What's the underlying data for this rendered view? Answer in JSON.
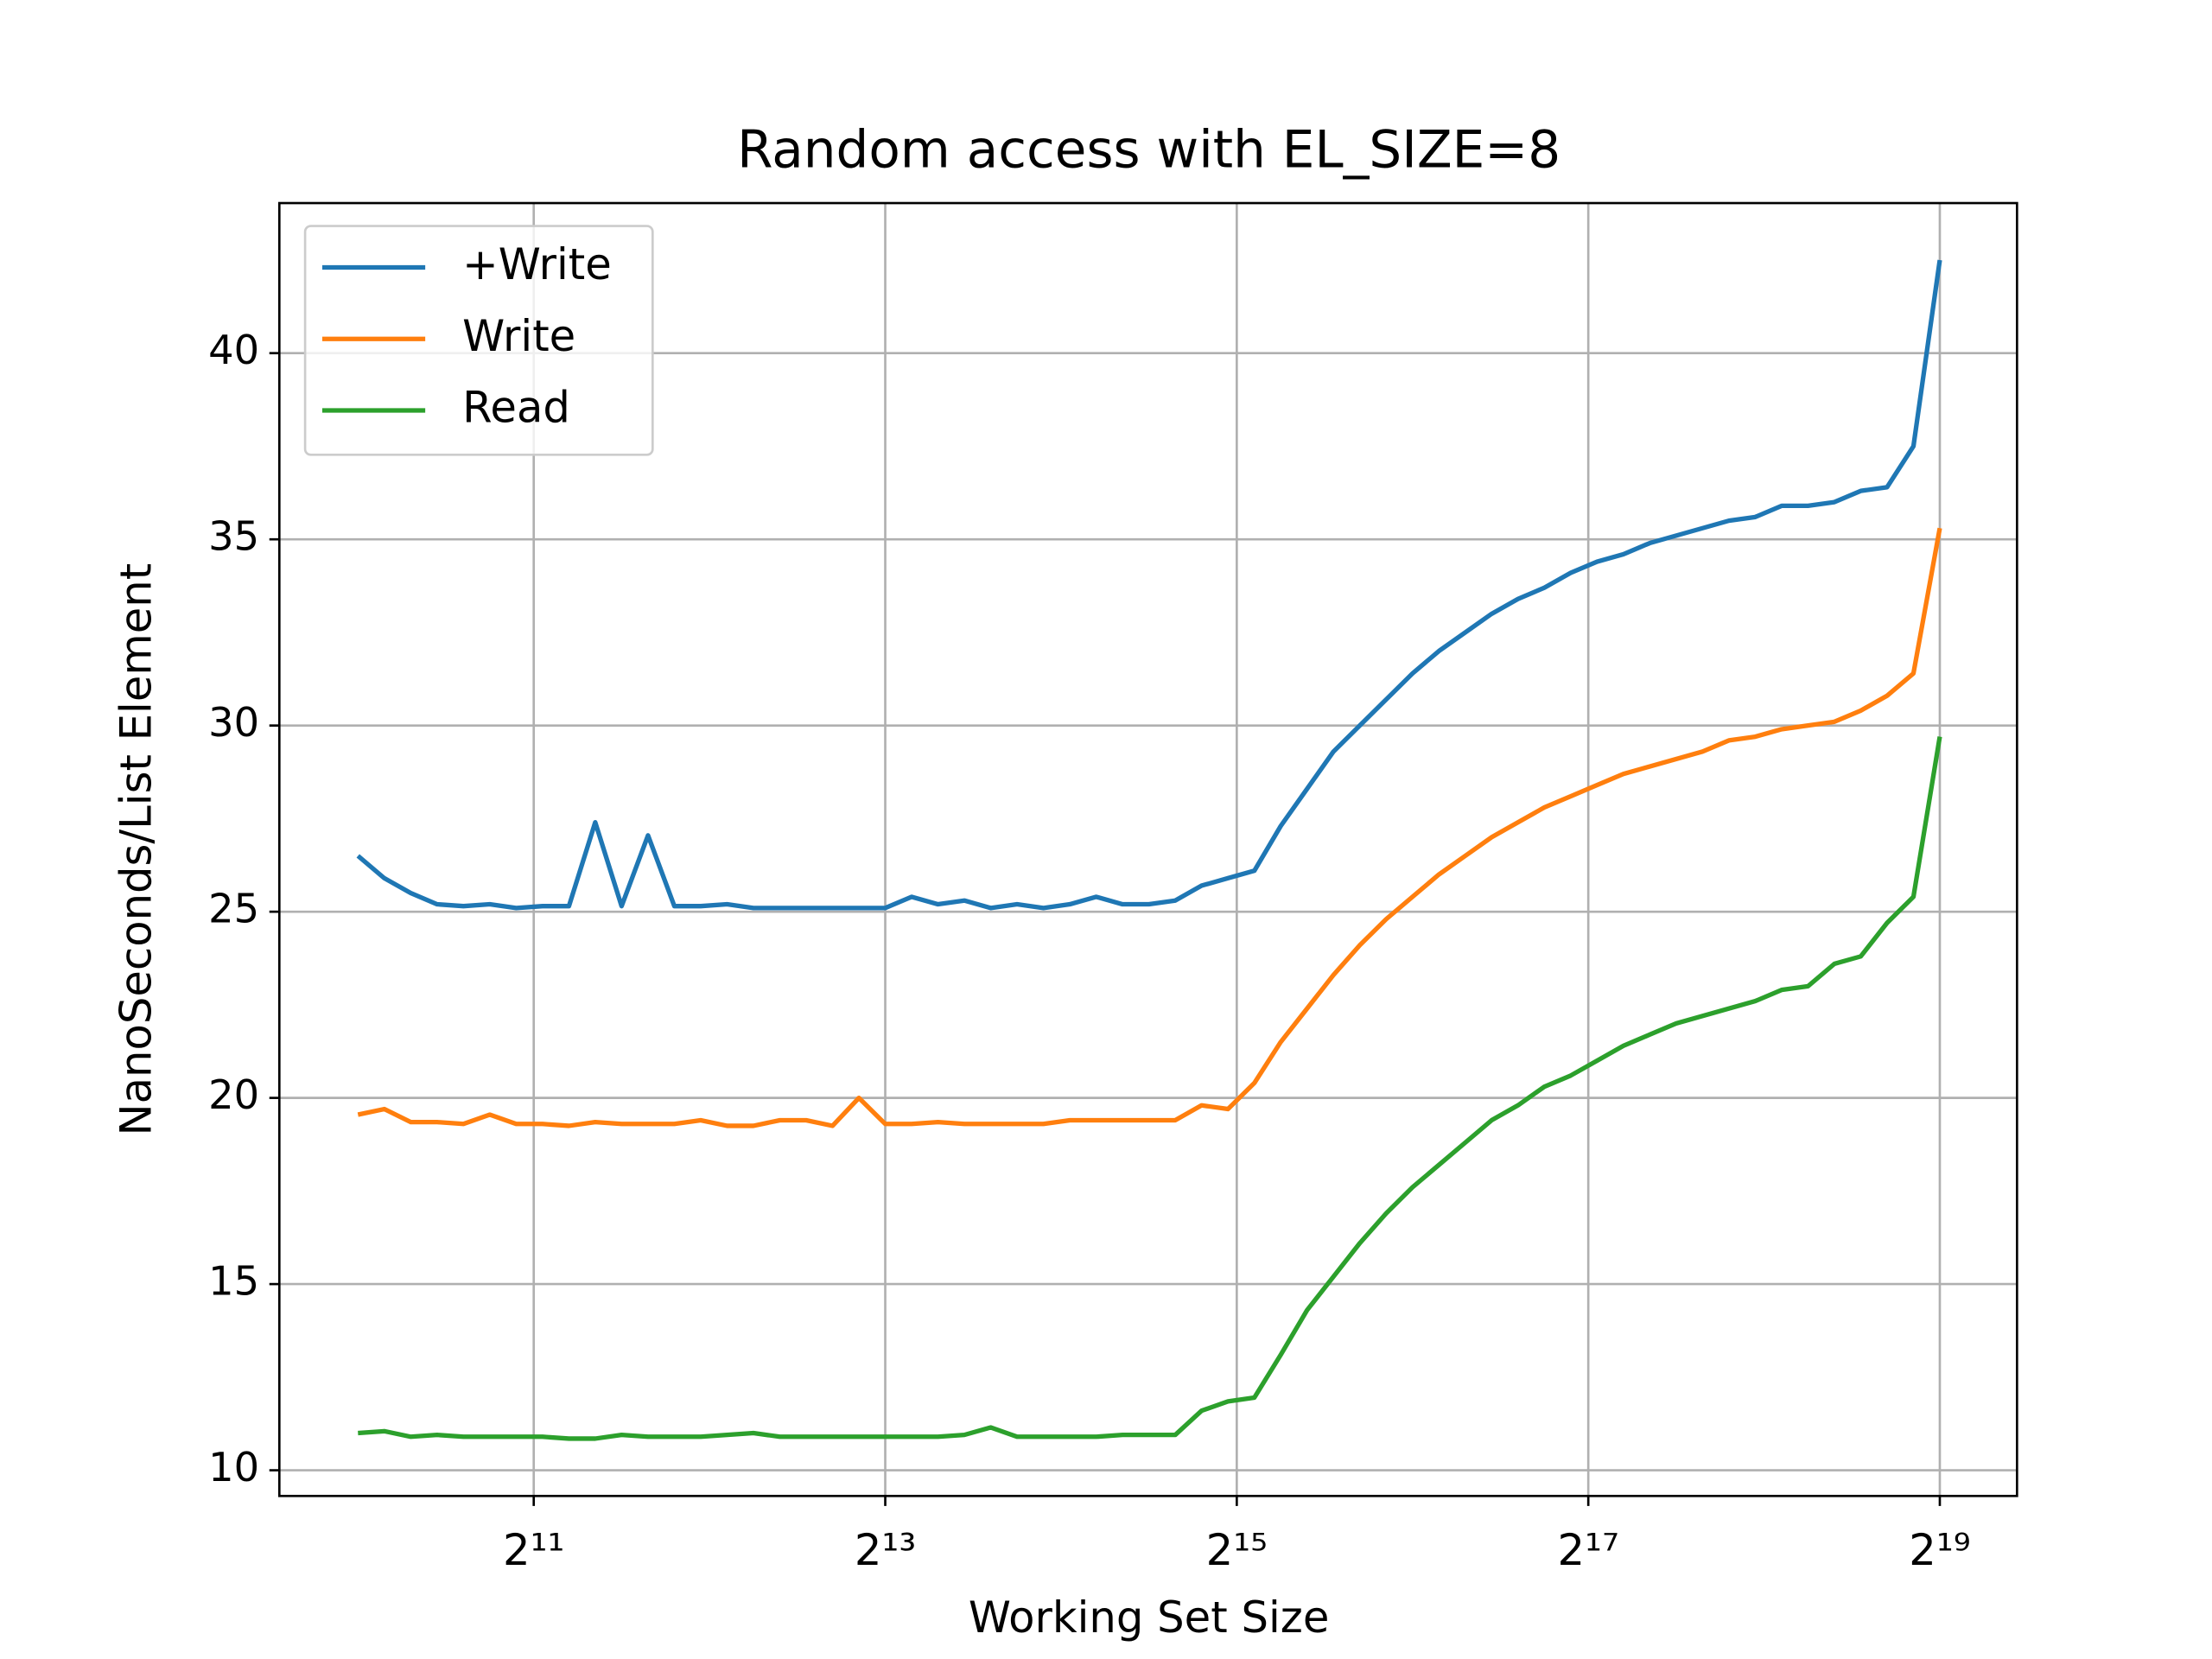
{
  "chart_data": {
    "type": "line",
    "title": "Random access with EL_SIZE=8",
    "xlabel": "Working Set Size",
    "ylabel": "NanoSeconds/List Element",
    "xscale": "log2",
    "x": [
      1024,
      1136,
      1261,
      1399,
      1552,
      1722,
      1911,
      2120,
      2353,
      2610,
      2896,
      3214,
      3566,
      3956,
      4390,
      4871,
      5405,
      5997,
      6654,
      7383,
      8192,
      9090,
      10086,
      11191,
      12417,
      13777,
      15287,
      16962,
      18820,
      20883,
      23170,
      25709,
      28526,
      31652,
      35120,
      38968,
      43238,
      47976,
      53232,
      59065,
      65536,
      72717,
      80684,
      89525,
      99334,
      110218,
      122295,
      135695,
      150562,
      167059,
      185364,
      205675,
      228211,
      253216,
      280961,
      311746,
      345904,
      383805,
      425859,
      472521,
      524288
    ],
    "series": [
      {
        "name": "+Write",
        "color": "#1f77b4",
        "values": [
          26.5,
          25.9,
          25.5,
          25.2,
          25.15,
          25.2,
          25.1,
          25.15,
          25.15,
          27.4,
          25.15,
          27.05,
          25.15,
          25.15,
          25.2,
          25.1,
          25.1,
          25.1,
          25.1,
          25.1,
          25.1,
          25.4,
          25.2,
          25.3,
          25.1,
          25.2,
          25.1,
          25.2,
          25.4,
          25.2,
          25.2,
          25.3,
          25.7,
          25.9,
          26.1,
          27.3,
          28.3,
          29.3,
          30.0,
          30.7,
          31.4,
          32.0,
          32.5,
          33.0,
          33.4,
          33.7,
          34.1,
          34.4,
          34.6,
          34.9,
          35.1,
          35.3,
          35.5,
          35.6,
          35.9,
          35.9,
          36.0,
          36.3,
          36.4,
          37.5,
          42.5
        ]
      },
      {
        "name": "Write",
        "color": "#ff7f0e",
        "values": [
          19.55,
          19.7,
          19.35,
          19.35,
          19.3,
          19.55,
          19.3,
          19.3,
          19.25,
          19.35,
          19.3,
          19.3,
          19.3,
          19.4,
          19.25,
          19.25,
          19.4,
          19.4,
          19.25,
          20.0,
          19.3,
          19.3,
          19.35,
          19.3,
          19.3,
          19.3,
          19.3,
          19.4,
          19.4,
          19.4,
          19.4,
          19.4,
          19.8,
          19.7,
          20.4,
          21.5,
          22.4,
          23.3,
          24.1,
          24.8,
          25.4,
          26.0,
          26.5,
          27.0,
          27.4,
          27.8,
          28.1,
          28.4,
          28.7,
          28.9,
          29.1,
          29.3,
          29.6,
          29.7,
          29.9,
          30.0,
          30.1,
          30.4,
          30.8,
          31.4,
          35.3
        ]
      },
      {
        "name": "Read",
        "color": "#2ca02c",
        "values": [
          11.0,
          11.05,
          10.9,
          10.95,
          10.9,
          10.9,
          10.9,
          10.9,
          10.85,
          10.85,
          10.95,
          10.9,
          10.9,
          10.9,
          10.95,
          11.0,
          10.9,
          10.9,
          10.9,
          10.9,
          10.9,
          10.9,
          10.9,
          10.95,
          11.15,
          10.9,
          10.9,
          10.9,
          10.9,
          10.95,
          10.95,
          10.95,
          11.6,
          11.85,
          11.95,
          13.1,
          14.3,
          15.2,
          16.1,
          16.9,
          17.6,
          18.2,
          18.8,
          19.4,
          19.8,
          20.3,
          20.6,
          21.0,
          21.4,
          21.7,
          22.0,
          22.2,
          22.4,
          22.6,
          22.9,
          23.0,
          23.6,
          23.8,
          24.7,
          25.4,
          29.7
        ]
      }
    ],
    "xlim": [
      751,
      710900
    ],
    "xticks": [
      {
        "value": 2048,
        "label": "2¹¹"
      },
      {
        "value": 8192,
        "label": "2¹³"
      },
      {
        "value": 32768,
        "label": "2¹⁵"
      },
      {
        "value": 131072,
        "label": "2¹⁷"
      },
      {
        "value": 524288,
        "label": "2¹⁹"
      }
    ],
    "ylim": [
      9.31,
      44.03
    ],
    "yticks": [
      10,
      15,
      20,
      25,
      30,
      35,
      40
    ],
    "grid": true,
    "legend": "upper-left"
  }
}
